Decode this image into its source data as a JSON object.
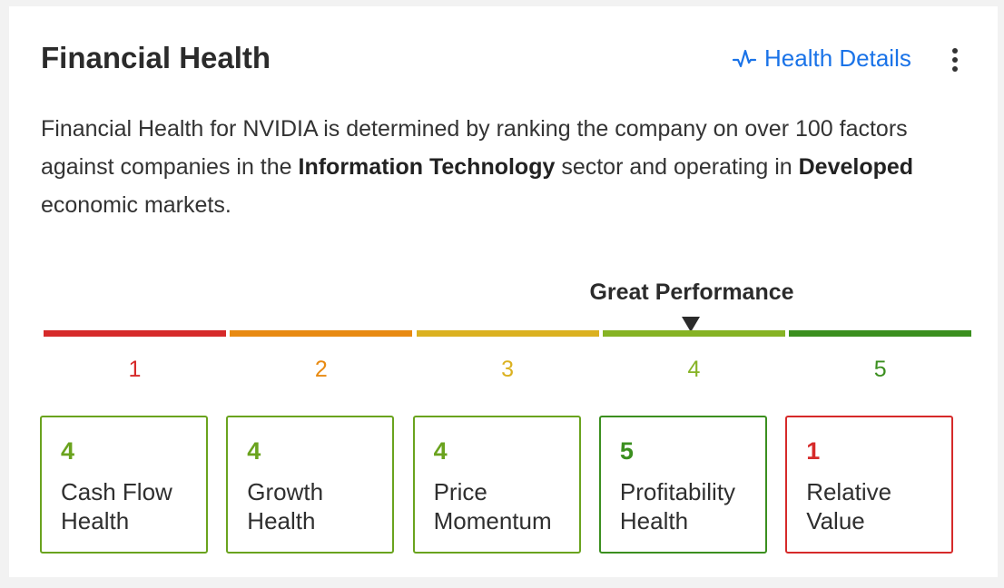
{
  "header": {
    "title": "Financial Health",
    "details_label": "Health Details",
    "details_icon": "pulse-icon",
    "more_icon": "more-vertical-icon"
  },
  "description": {
    "part1": "Financial Health for NVIDIA is determined by ranking the company on over 100 factors against companies in the ",
    "sector": "Information Technology",
    "part2": " sector and operating in ",
    "market": "Developed",
    "part3": " economic markets."
  },
  "scale": {
    "current_label": "Great Performance",
    "current_score": 4,
    "levels": [
      {
        "label": "1",
        "color": "#d62a2a"
      },
      {
        "label": "2",
        "color": "#e88a12"
      },
      {
        "label": "3",
        "color": "#dbb120"
      },
      {
        "label": "4",
        "color": "#86b324"
      },
      {
        "label": "5",
        "color": "#3b8f1f"
      }
    ]
  },
  "factors": [
    {
      "score": "4",
      "label": "Cash Flow Health",
      "line1": "Cash Flow",
      "line2": "Health",
      "color": "#6aa31e"
    },
    {
      "score": "4",
      "label": "Growth Health",
      "line1": "Growth",
      "line2": "Health",
      "color": "#6aa31e"
    },
    {
      "score": "4",
      "label": "Price Momentum",
      "line1": "Price",
      "line2": "Momentum",
      "color": "#6aa31e"
    },
    {
      "score": "5",
      "label": "Profitability Health",
      "line1": "Profitability",
      "line2": "Health",
      "color": "#3b8f1f"
    },
    {
      "score": "1",
      "label": "Relative Value",
      "line1": "Relative",
      "line2": "Value",
      "color": "#d62a2a"
    }
  ]
}
